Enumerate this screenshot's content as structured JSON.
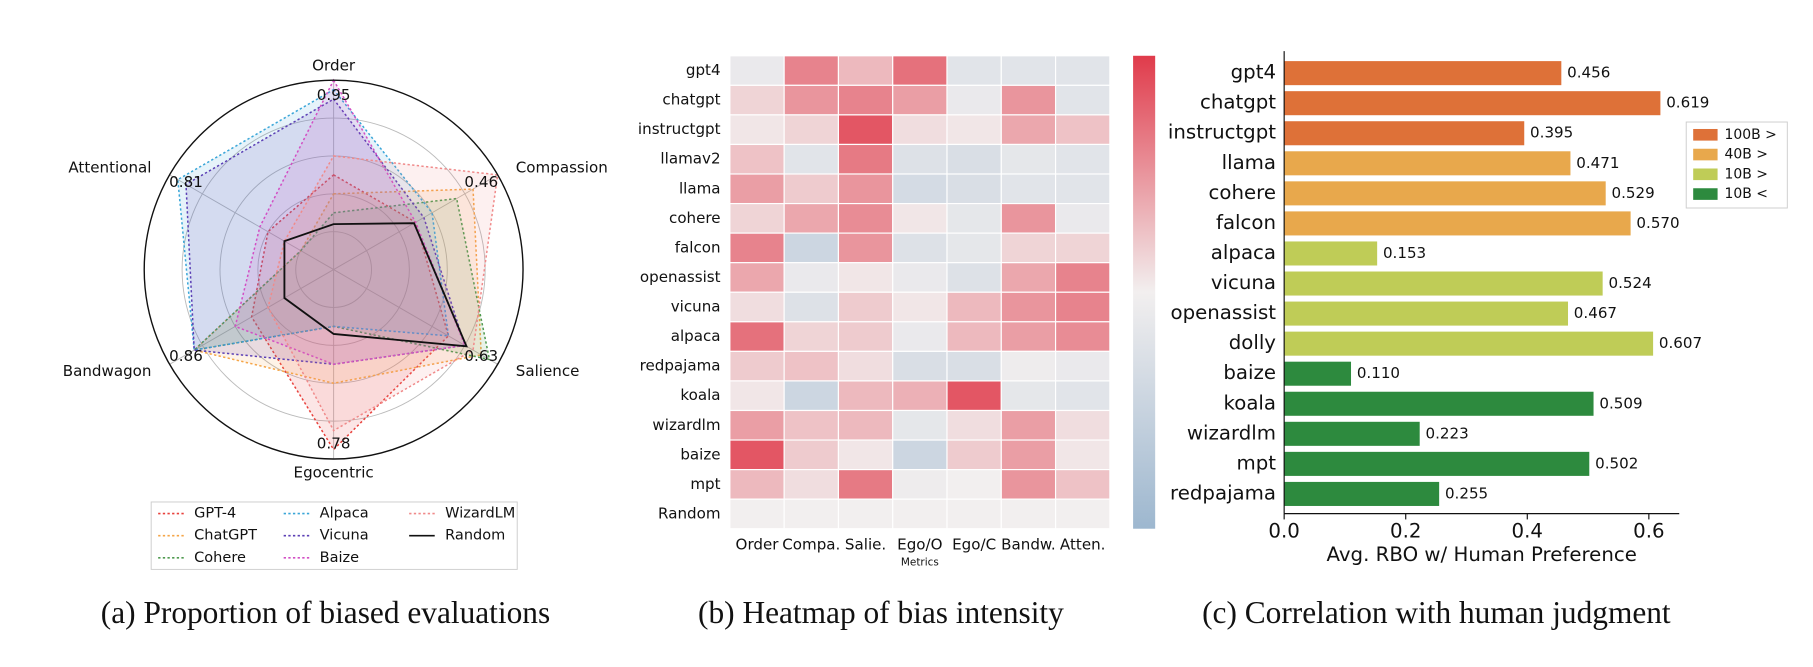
{
  "chart_data": [
    {
      "type": "radar",
      "caption": "(a) Proportion of biased evaluations",
      "categories": [
        "Order",
        "Compassion",
        "Salience",
        "Egocentric",
        "Bandwagon",
        "Attentional"
      ],
      "max_labels": [
        "0.95",
        "0.46",
        "0.63",
        "0.78",
        "0.86",
        "0.81"
      ],
      "rlim": [
        0,
        1
      ],
      "rticks": [
        0.2,
        0.4,
        0.6,
        0.8
      ],
      "legend": "bottom",
      "series": [
        {
          "name": "GPT-4",
          "color": "#e8413c",
          "linestyle": "dotted",
          "fill": true,
          "values": [
            0.5,
            0.5,
            0.7,
            0.95,
            0.5,
            0.4
          ]
        },
        {
          "name": "ChatGPT",
          "color": "#f5a547",
          "linestyle": "dotted",
          "fill": true,
          "values": [
            0.4,
            0.85,
            0.9,
            0.6,
            0.85,
            0.2
          ]
        },
        {
          "name": "Cohere",
          "color": "#4f9a4f",
          "linestyle": "dotted",
          "fill": true,
          "values": [
            0.3,
            0.75,
            0.95,
            0.3,
            0.85,
            0.2
          ]
        },
        {
          "name": "Alpaca",
          "color": "#3aa6d8",
          "linestyle": "dotted",
          "fill": true,
          "values": [
            0.95,
            0.6,
            0.7,
            0.3,
            0.85,
            0.95
          ]
        },
        {
          "name": "Vicuna",
          "color": "#5b3fb5",
          "linestyle": "dotted",
          "fill": true,
          "values": [
            0.9,
            0.55,
            0.8,
            0.5,
            0.85,
            0.9
          ]
        },
        {
          "name": "Baize",
          "color": "#d24fc4",
          "linestyle": "dotted",
          "fill": true,
          "values": [
            1.0,
            0.5,
            0.8,
            0.5,
            0.6,
            0.45
          ]
        },
        {
          "name": "WizardLM",
          "color": "#f08a8a",
          "linestyle": "dotted",
          "fill": true,
          "values": [
            0.6,
            1.0,
            0.85,
            0.85,
            0.4,
            0.3
          ]
        },
        {
          "name": "Random",
          "color": "#111111",
          "linestyle": "solid",
          "fill": false,
          "values": [
            0.24,
            0.49,
            0.81,
            0.34,
            0.3,
            0.3
          ]
        }
      ]
    },
    {
      "type": "heatmap",
      "caption": "(b) Heatmap of bias intensity",
      "xlabel": "Metrics",
      "categories": [
        "Order",
        "Compa.",
        "Salie.",
        "Ego/O",
        "Ego/C",
        "Bandw.",
        "Atten."
      ],
      "rows": [
        "gpt4",
        "chatgpt",
        "instructgpt",
        "llamav2",
        "llama",
        "cohere",
        "falcon",
        "openassist",
        "vicuna",
        "alpaca",
        "redpajama",
        "koala",
        "wizardlm",
        "baize",
        "mpt",
        "Random"
      ],
      "zlim": [
        -1,
        1
      ],
      "colormap": [
        "#9db7cf",
        "#f2efef",
        "#e03b4b"
      ],
      "values": [
        [
          -0.1,
          0.6,
          0.3,
          0.7,
          -0.2,
          -0.2,
          -0.2
        ],
        [
          0.15,
          0.5,
          0.6,
          0.45,
          -0.1,
          0.5,
          -0.2
        ],
        [
          0.05,
          0.15,
          0.85,
          0.1,
          0.05,
          0.4,
          0.25
        ],
        [
          0.25,
          -0.2,
          0.65,
          -0.25,
          -0.3,
          -0.15,
          -0.2
        ],
        [
          0.45,
          0.2,
          0.5,
          -0.35,
          -0.3,
          -0.2,
          -0.2
        ],
        [
          0.15,
          0.4,
          0.55,
          0.05,
          -0.15,
          0.5,
          -0.1
        ],
        [
          0.6,
          -0.45,
          0.5,
          -0.25,
          -0.15,
          0.15,
          0.15
        ],
        [
          0.4,
          -0.1,
          0.05,
          -0.1,
          -0.25,
          0.4,
          0.6
        ],
        [
          0.1,
          -0.25,
          0.2,
          0.05,
          0.3,
          0.5,
          0.6
        ],
        [
          0.7,
          0.15,
          0.2,
          -0.1,
          0.3,
          0.45,
          0.55
        ],
        [
          0.2,
          0.25,
          0.1,
          -0.3,
          -0.3,
          -0.05,
          -0.1
        ],
        [
          0.05,
          -0.45,
          0.3,
          0.35,
          0.85,
          -0.15,
          -0.2
        ],
        [
          0.45,
          0.25,
          0.3,
          -0.15,
          0.1,
          0.45,
          0.1
        ],
        [
          0.85,
          0.2,
          0.05,
          -0.45,
          0.2,
          0.45,
          0.05
        ],
        [
          0.3,
          0.1,
          0.65,
          -0.05,
          0.0,
          0.5,
          0.25
        ],
        [
          0,
          0,
          0,
          0,
          0,
          0,
          0
        ]
      ]
    },
    {
      "type": "bar",
      "orientation": "horizontal",
      "caption": "(c) Correlation with human judgment",
      "xlabel": "Avg. RBO w/ Human Preference",
      "categories": [
        "gpt4",
        "chatgpt",
        "instructgpt",
        "llama",
        "cohere",
        "falcon",
        "alpaca",
        "vicuna",
        "openassist",
        "dolly",
        "baize",
        "koala",
        "wizardlm",
        "mpt",
        "redpajama"
      ],
      "xlim": [
        0,
        0.65
      ],
      "xticks": [
        {
          "value": 0,
          "label": "0.0"
        },
        0.2,
        0.4,
        0.6
      ],
      "legend": "upper right",
      "series": [
        {
          "name": "100B >",
          "color": "#de7138",
          "values": [
            0.456,
            0.619,
            0.395,
            null,
            null,
            null,
            null,
            null,
            null,
            null,
            null,
            null,
            null,
            null,
            null
          ],
          "value_labels": [
            "0.456",
            "0.619",
            "0.395",
            null,
            null,
            null,
            null,
            null,
            null,
            null,
            null,
            null,
            null,
            null,
            null
          ]
        },
        {
          "name": "40B >",
          "color": "#e8a84c",
          "values": [
            null,
            null,
            null,
            0.471,
            0.529,
            0.57,
            null,
            null,
            null,
            null,
            null,
            null,
            null,
            null,
            null
          ],
          "value_labels": [
            null,
            null,
            null,
            "0.471",
            "0.529",
            "0.570",
            null,
            null,
            null,
            null,
            null,
            null,
            null,
            null,
            null
          ]
        },
        {
          "name": "10B >",
          "color": "#bfcc57",
          "values": [
            null,
            null,
            null,
            null,
            null,
            null,
            0.153,
            0.524,
            0.467,
            0.607,
            null,
            null,
            null,
            null,
            null
          ],
          "value_labels": [
            null,
            null,
            null,
            null,
            null,
            null,
            "0.153",
            "0.524",
            "0.467",
            "0.607",
            null,
            null,
            null,
            null,
            null
          ]
        },
        {
          "name": "10B <",
          "color": "#2d8a3e",
          "values": [
            null,
            null,
            null,
            null,
            null,
            null,
            null,
            null,
            null,
            null,
            0.11,
            0.509,
            0.223,
            0.502,
            0.255
          ],
          "value_labels": [
            null,
            null,
            null,
            null,
            null,
            null,
            null,
            null,
            null,
            null,
            "0.110",
            "0.509",
            "0.223",
            "0.502",
            "0.255"
          ]
        }
      ]
    }
  ]
}
